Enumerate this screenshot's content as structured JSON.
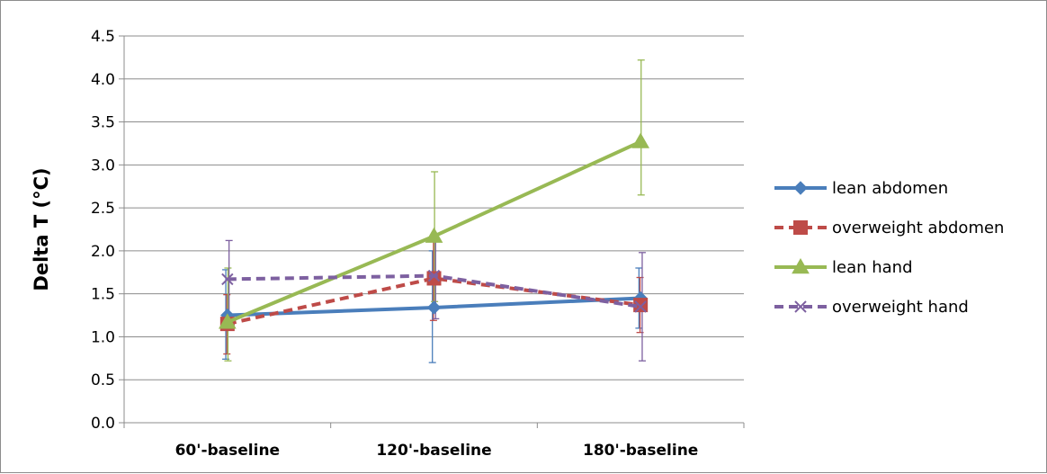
{
  "chart_data": {
    "type": "line",
    "title": "",
    "xlabel": "",
    "ylabel": "Delta T (°C)",
    "categories": [
      "60'-baseline",
      "120'-baseline",
      "180'-baseline"
    ],
    "ylim": [
      0.0,
      4.5
    ],
    "yticks": [
      "0.0",
      "0.5",
      "1.0",
      "1.5",
      "2.0",
      "2.5",
      "3.0",
      "3.5",
      "4.0",
      "4.5"
    ],
    "grid": true,
    "legend_position": "right",
    "series": [
      {
        "name": "lean abdomen",
        "values": [
          1.25,
          1.34,
          1.45
        ],
        "error_low": [
          0.74,
          0.7,
          1.1
        ],
        "error_high": [
          1.78,
          2.0,
          1.8
        ],
        "color": "#4a7ebb",
        "dash": "solid",
        "marker": "diamond"
      },
      {
        "name": "overweight abdomen",
        "values": [
          1.15,
          1.68,
          1.37
        ],
        "error_low": [
          0.8,
          1.19,
          1.05
        ],
        "error_high": [
          1.49,
          2.17,
          1.69
        ],
        "color": "#be4b48",
        "dash": "dashed",
        "marker": "square"
      },
      {
        "name": "lean hand",
        "values": [
          1.17,
          2.17,
          3.27
        ],
        "error_low": [
          0.72,
          1.41,
          2.65
        ],
        "error_high": [
          1.8,
          2.92,
          4.22
        ],
        "color": "#98b954",
        "dash": "solid",
        "marker": "triangle"
      },
      {
        "name": "overweight hand",
        "values": [
          1.67,
          1.71,
          1.35
        ],
        "error_low": [
          1.22,
          1.21,
          0.72
        ],
        "error_high": [
          2.12,
          2.2,
          1.98
        ],
        "color": "#7d60a0",
        "dash": "dashed",
        "marker": "x"
      }
    ]
  }
}
